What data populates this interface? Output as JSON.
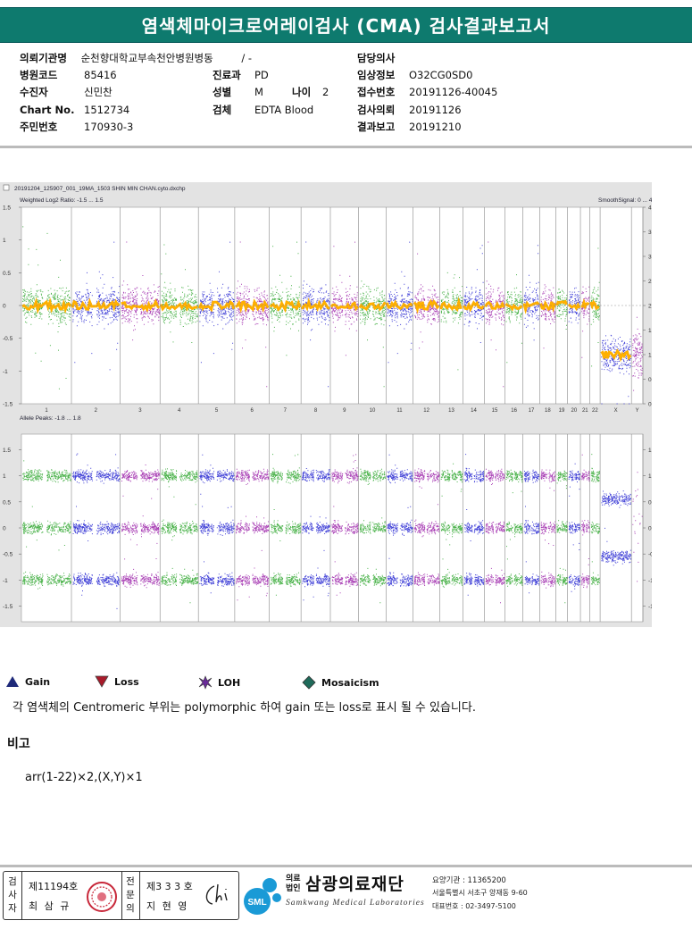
{
  "report": {
    "title": "염색체마이크로어레이검사 (CMA) 검사결과보고서",
    "fields": {
      "institution": {
        "label": "의뢰기관명",
        "value": "순천향대학교부속천안병원병동",
        "extra": "/ -"
      },
      "hospital_code": {
        "label": "병원코드",
        "value": "85416"
      },
      "patient": {
        "label": "수진자",
        "value": "신민찬"
      },
      "chart_no": {
        "label": "Chart No.",
        "value": "1512734"
      },
      "resident_no": {
        "label": "주민번호",
        "value": "170930-3"
      },
      "department": {
        "label": "진료과",
        "value": "PD"
      },
      "sex": {
        "label": "성별",
        "value": "M"
      },
      "age": {
        "label": "나이",
        "value": "2"
      },
      "specimen": {
        "label": "검체",
        "value": "EDTA Blood"
      },
      "doctor": {
        "label": "담당의사",
        "value": ""
      },
      "clinical_info": {
        "label": "임상정보",
        "value": "O32CG0SD0"
      },
      "receipt_no": {
        "label": "접수번호",
        "value": "20191126-40045"
      },
      "request_date": {
        "label": "검사의뢰",
        "value": "20191126"
      },
      "report_date": {
        "label": "결과보고",
        "value": "20191210"
      }
    }
  },
  "chart_data": {
    "type": "scatter",
    "file_label": "20191204_125907_001_19MA_1503 SHIN MIN CHAN.cyto.dxchp",
    "top_panel": {
      "title": "Weighted Log2 Ratio: -1.5 ... 1.5",
      "right_title": "SmoothSignal: 0 ... 4",
      "ylim": [
        -1.5,
        1.5
      ],
      "left_ticks": [
        "1.5",
        "1",
        "0.5",
        "0",
        "-0.5",
        "-1",
        "-1.5"
      ],
      "right_ticks": [
        "4",
        "3.5",
        "3",
        "2.5",
        "2",
        "1.5",
        "1",
        "0.5",
        "0"
      ]
    },
    "bottom_panel": {
      "title": "Allele Peaks: -1.8 ... 1.8",
      "ylim": [
        -1.8,
        1.8
      ],
      "left_ticks": [
        "1.5",
        "1",
        "0.5",
        "0",
        "-0.5",
        "-1",
        "-1.5"
      ],
      "right_ticks": [
        "1.5",
        "1",
        "0.5",
        "0",
        "-0.5",
        "-1",
        "-1.5"
      ]
    },
    "chromosomes": [
      "1",
      "2",
      "3",
      "4",
      "5",
      "6",
      "7",
      "8",
      "9",
      "10",
      "11",
      "12",
      "13",
      "14",
      "15",
      "16",
      "17",
      "18",
      "19",
      "20",
      "21",
      "22",
      "X",
      "Y"
    ],
    "chromosome_sizes": [
      249,
      243,
      198,
      191,
      181,
      171,
      159,
      146,
      141,
      136,
      135,
      133,
      115,
      107,
      102,
      90,
      83,
      80,
      59,
      64,
      47,
      51,
      156,
      57
    ],
    "series_colors": [
      "#2aa52a",
      "#2020d0",
      "#9a1fa8"
    ],
    "smooth_color": "#ffb000",
    "log2_ratio_level": {
      "autosomes": 0,
      "X": -0.75,
      "Y": -0.75
    },
    "allele_peak_levels": {
      "autosomes": [
        1,
        0,
        -1
      ],
      "X": [
        0.55,
        -0.55
      ]
    }
  },
  "legend": {
    "items": [
      {
        "label": "Gain",
        "icon": "triangle-up-icon",
        "color": "#1f2a7a"
      },
      {
        "label": "Loss",
        "icon": "triangle-down-icon",
        "color": "#a81a2a"
      },
      {
        "label": "LOH",
        "icon": "star-icon",
        "color": "#6a2a9a"
      },
      {
        "label": "Mosaicism",
        "icon": "diamond-icon",
        "color": "#1f6a5a"
      }
    ],
    "note": "각 염색체의 Centromeric 부위는 polymorphic 하여 gain 또는 loss로 표시 될 수 있습니다."
  },
  "remarks": {
    "title": "비고",
    "result": "arr(1-22)×2,(X,Y)×1"
  },
  "footer": {
    "tester_label": "검사자",
    "tester_license": "제11194호",
    "tester_name": "최 삼 규",
    "specialist_label": "전문의",
    "specialist_license": "제3 3 3 호",
    "specialist_name": "지 현 영",
    "org_prefix": "의료법인",
    "org_name": "삼광의료재단",
    "org_english": "Samkwang Medical Laboratories",
    "org_logo_text": "SML",
    "org_code": "요양기관 : 11365200",
    "org_address": "서울특별시 서초구 양재동 9-60",
    "org_phone": "대표번호 : 02-3497-5100"
  }
}
